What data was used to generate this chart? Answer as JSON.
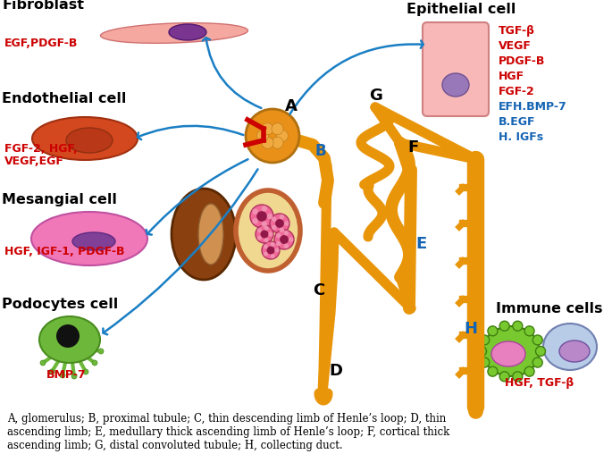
{
  "fig_width": 6.85,
  "fig_height": 5.27,
  "dpi": 100,
  "bg_color": "#ffffff",
  "labels": {
    "fibroblast": "Fibroblast",
    "fibroblast_factors": "EGF,PDGF-B",
    "endothelial": "Endothelial cell",
    "endothelial_factors_line1": "FGF-2, HGF,",
    "endothelial_factors_line2": "VEGF,EGF",
    "mesangial": "Mesangial cell",
    "mesangial_factors": "HGF, IGF-1, PDGF-B",
    "podocytes": "Podocytes cell",
    "podocytes_factors": "BMP-7",
    "epithelial": "Epithelial cell",
    "immune": "Immune cells",
    "immune_factors": "HGF, TGF-β",
    "epithelial_red": [
      "TGF-β",
      "VEGF",
      "PDGF-B",
      "HGF",
      "FGF-2"
    ],
    "epithelial_blue": [
      "EFH.BMP-7",
      "B.EGF",
      "H. IGFs"
    ],
    "seg_A": "A",
    "seg_B": "B",
    "seg_C": "C",
    "seg_D": "D",
    "seg_E": "E",
    "seg_F": "F",
    "seg_G": "G",
    "seg_H": "H"
  },
  "caption_line1": "A, glomerulus; B, proximal tubule; C, thin descending limb of Henle’s loop; D, thin",
  "caption_line2": "ascending limb; E, medullary thick ascending limb of Henle’s loop; F, cortical thick",
  "caption_line3": "ascending limb; G, distal convoluted tubule; H, collecting duct.",
  "colors": {
    "red_label": "#cc0000",
    "blue_label": "#1464b4",
    "black": "#000000",
    "arrow_blue": "#1a7fc4",
    "tubule_orange": "#e8950a",
    "tubule_dark": "#c07800",
    "fibroblast_body": "#f5a8a0",
    "fibroblast_nucleus": "#7a3590",
    "endo_body": "#d44820",
    "endo_nucleus": "#b03010",
    "mesangial_body": "#f078b8",
    "mesangial_nucleus": "#804098",
    "podocyte_body": "#6db83a",
    "podocyte_dark": "#4a8c20",
    "epi_body": "#f8b8b8",
    "epi_nucleus": "#9878b8",
    "immune1_body": "#78c830",
    "immune1_nucleus": "#e880c0",
    "immune2_body": "#b8cce8",
    "immune2_nucleus": "#b888c8",
    "kidney_brown": "#8B4010",
    "kidney_light": "#c8884a",
    "cross_bg": "#f0d890",
    "cross_pink": "#f06898",
    "glom_orange": "#e89018",
    "glom_inner": "#f0aa40",
    "vessel_red": "#cc0000"
  }
}
